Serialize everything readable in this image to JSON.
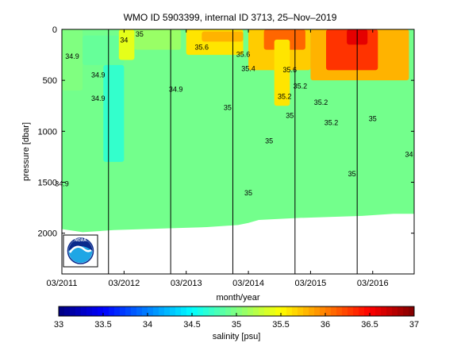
{
  "chart_data": {
    "type": "heatmap",
    "title": "WMO ID 5903399, internal ID 3713, 25–Nov–2019",
    "xlabel": "month/year",
    "ylabel": "pressure [dbar]",
    "x_tick_labels": [
      "03/2011",
      "03/2012",
      "03/2013",
      "03/2014",
      "03/2015",
      "03/2016"
    ],
    "y_tick_labels": [
      "0",
      "500",
      "1000",
      "1500",
      "2000"
    ],
    "y_ticks": [
      0,
      500,
      1000,
      1500,
      2000
    ],
    "xlim": [
      "2011-03",
      "2016-11"
    ],
    "ylim": [
      2400,
      0
    ],
    "y_reversed": true,
    "colorbar": {
      "label": "salinity [psu]",
      "ticks": [
        "33",
        "33.5",
        "34",
        "34.5",
        "35",
        "35.5",
        "36",
        "36.5",
        "37"
      ],
      "range": [
        33,
        37
      ],
      "colormap": "jet"
    },
    "year_markers": [
      "2011-12",
      "2012-12",
      "2013-12",
      "2014-12",
      "2015-12"
    ],
    "bottom_depth_profile": [
      {
        "date": "2011-03",
        "pressure": 1960
      },
      {
        "date": "2011-07",
        "pressure": 1990
      },
      {
        "date": "2012-01",
        "pressure": 1970
      },
      {
        "date": "2012-07",
        "pressure": 1960
      },
      {
        "date": "2013-01",
        "pressure": 1950
      },
      {
        "date": "2013-07",
        "pressure": 1940
      },
      {
        "date": "2014-01",
        "pressure": 1920
      },
      {
        "date": "2014-03",
        "pressure": 1900
      },
      {
        "date": "2014-05",
        "pressure": 1870
      },
      {
        "date": "2015-01",
        "pressure": 1850
      },
      {
        "date": "2016-01",
        "pressure": 1830
      },
      {
        "date": "2016-07",
        "pressure": 1810
      },
      {
        "date": "2016-11",
        "pressure": 1810
      }
    ],
    "salinity_regions": [
      {
        "x0": "2011-03",
        "x1": "2011-07",
        "p0": 0,
        "p1": 600,
        "salinity": 35.0
      },
      {
        "x0": "2011-07",
        "x1": "2012-03",
        "p0": 60,
        "p1": 350,
        "salinity": 34.9
      },
      {
        "x0": "2011-11",
        "x1": "2012-03",
        "p0": 350,
        "p1": 1300,
        "salinity": 34.7
      },
      {
        "x0": "2012-02",
        "x1": "2012-05",
        "p0": 0,
        "p1": 300,
        "salinity": 35.4
      },
      {
        "x0": "2012-05",
        "x1": "2013-02",
        "p0": 0,
        "p1": 200,
        "salinity": 35.1
      },
      {
        "x0": "2013-03",
        "x1": "2014-02",
        "p0": 0,
        "p1": 250,
        "salinity": 35.6
      },
      {
        "x0": "2013-06",
        "x1": "2014-02",
        "p0": 20,
        "p1": 120,
        "salinity": 35.8
      },
      {
        "x0": "2014-03",
        "x1": "2015-03",
        "p0": 0,
        "p1": 400,
        "salinity": 35.7
      },
      {
        "x0": "2014-06",
        "x1": "2015-02",
        "p0": 0,
        "p1": 200,
        "salinity": 36.1
      },
      {
        "x0": "2014-08",
        "x1": "2014-11",
        "p0": 100,
        "p1": 750,
        "salinity": 35.6
      },
      {
        "x0": "2015-03",
        "x1": "2016-10",
        "p0": 0,
        "p1": 500,
        "salinity": 35.8
      },
      {
        "x0": "2015-06",
        "x1": "2016-04",
        "p0": 0,
        "p1": 400,
        "salinity": 36.3
      },
      {
        "x0": "2015-10",
        "x1": "2016-02",
        "p0": 0,
        "p1": 150,
        "salinity": 36.6
      }
    ],
    "contour_labels": [
      {
        "text": "34.9",
        "date": "2011-05",
        "pressure": 290
      },
      {
        "text": "34.9",
        "date": "2011-10",
        "pressure": 470
      },
      {
        "text": "34.9",
        "date": "2011-10",
        "pressure": 700
      },
      {
        "text": "34.9",
        "date": "2011-03",
        "pressure": 1540
      },
      {
        "text": "34.9",
        "date": "2013-01",
        "pressure": 610
      },
      {
        "text": "34",
        "date": "2012-03",
        "pressure": 130
      },
      {
        "text": "35",
        "date": "2012-06",
        "pressure": 70
      },
      {
        "text": "35.6",
        "date": "2013-06",
        "pressure": 200
      },
      {
        "text": "35.6",
        "date": "2014-02",
        "pressure": 270
      },
      {
        "text": "35.4",
        "date": "2014-03",
        "pressure": 410
      },
      {
        "text": "35",
        "date": "2013-11",
        "pressure": 790
      },
      {
        "text": "35.6",
        "date": "2014-11",
        "pressure": 420
      },
      {
        "text": "35.2",
        "date": "2015-01",
        "pressure": 580
      },
      {
        "text": "35.2",
        "date": "2014-10",
        "pressure": 680
      },
      {
        "text": "35.2",
        "date": "2015-05",
        "pressure": 740
      },
      {
        "text": "35",
        "date": "2014-11",
        "pressure": 870
      },
      {
        "text": "35.2",
        "date": "2015-07",
        "pressure": 940
      },
      {
        "text": "35",
        "date": "2014-07",
        "pressure": 1120
      },
      {
        "text": "35",
        "date": "2016-03",
        "pressure": 900
      },
      {
        "text": "35",
        "date": "2015-11",
        "pressure": 1440
      },
      {
        "text": "35",
        "date": "2014-03",
        "pressure": 1630
      },
      {
        "text": "34",
        "date": "2016-10",
        "pressure": 1250
      }
    ]
  },
  "logo": {
    "text": "NOAA",
    "colors": {
      "navy": "#0a2a8c",
      "sky": "#1fa6e5",
      "outline": "#002f6c"
    }
  }
}
